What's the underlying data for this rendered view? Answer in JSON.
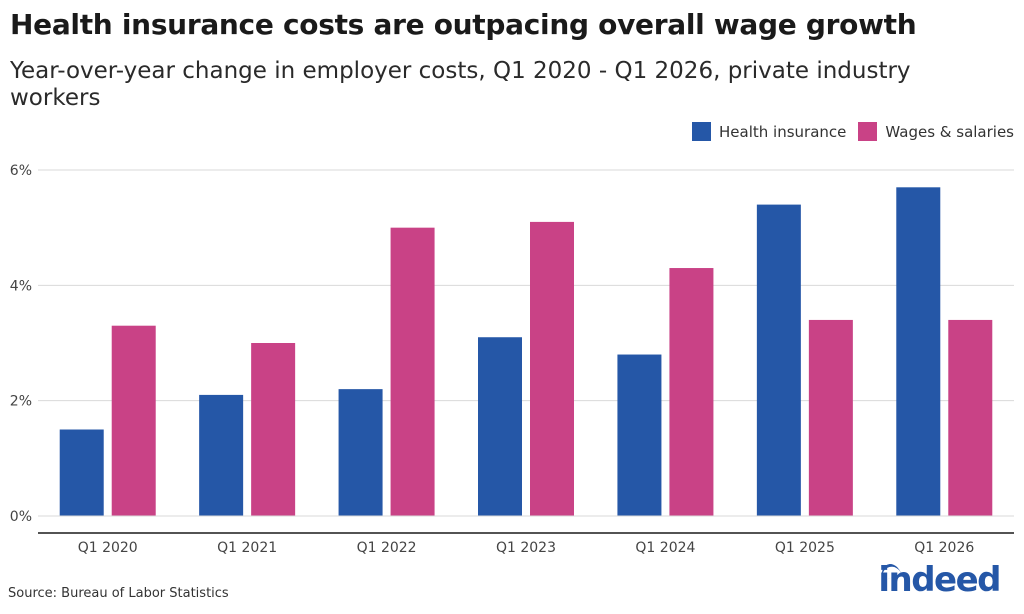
{
  "title": "Health insurance costs are outpacing overall wage growth",
  "subtitle": "Year-over-year change in employer costs, Q1 2020 - Q1 2026, private industry workers",
  "source": "Source: Bureau of Labor Statistics",
  "logo_text": "indeed",
  "colors": {
    "health": "#2557a7",
    "wages": "#c94286",
    "grid": "#d9d9d9",
    "axis": "#1a1a1a",
    "tick": "#444444"
  },
  "chart_data": {
    "type": "bar",
    "categories": [
      "Q1 2020",
      "Q1 2021",
      "Q1 2022",
      "Q1 2023",
      "Q1 2024",
      "Q1 2025",
      "Q1 2026"
    ],
    "series": [
      {
        "name": "Health insurance",
        "values": [
          1.5,
          2.1,
          2.2,
          3.1,
          2.8,
          5.4,
          5.7
        ]
      },
      {
        "name": "Wages & salaries",
        "values": [
          3.3,
          3.0,
          5.0,
          5.1,
          4.3,
          3.4,
          3.4
        ]
      }
    ],
    "yticks": [
      0,
      2,
      4,
      6
    ],
    "ytick_labels": [
      "0%",
      "2%",
      "4%",
      "6%"
    ],
    "ylim": [
      0,
      6
    ],
    "grid": true,
    "legend": "top-right",
    "xlabel": "",
    "ylabel": ""
  }
}
